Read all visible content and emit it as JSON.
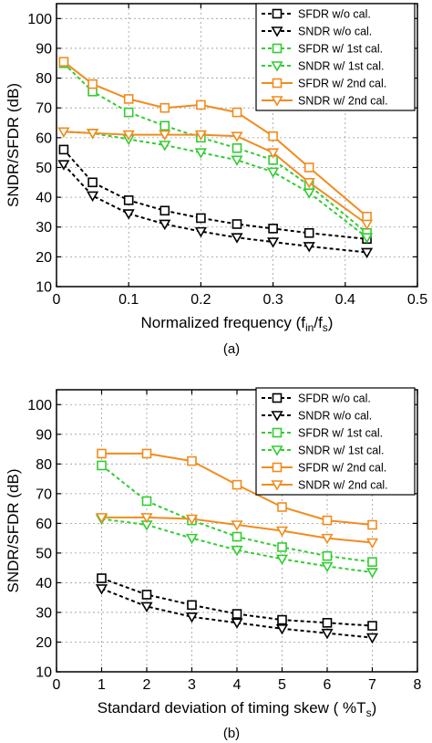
{
  "chart_data": [
    {
      "type": "line",
      "caption": "(a)",
      "xlabel_main": "Normalized frequency (f",
      "xlabel_sub1": "in",
      "xlabel_mid": "/f",
      "xlabel_sub2": "s",
      "xlabel_end": ")",
      "ylabel": "SNDR/SFDR (dB)",
      "xlim": [
        0,
        0.5
      ],
      "ylim": [
        10,
        105
      ],
      "xticks": [
        "0",
        "0.1",
        "0.2",
        "0.3",
        "0.4",
        "0.5"
      ],
      "xtick_values": [
        0,
        0.1,
        0.2,
        0.3,
        0.4,
        0.5
      ],
      "yticks": [
        "10",
        "20",
        "30",
        "40",
        "50",
        "60",
        "70",
        "80",
        "90",
        "100"
      ],
      "ytick_values": [
        10,
        20,
        30,
        40,
        50,
        60,
        70,
        80,
        90,
        100
      ],
      "grid": true,
      "legend_position": "top-right",
      "x": [
        0.01,
        0.05,
        0.1,
        0.15,
        0.2,
        0.25,
        0.3,
        0.35,
        0.43
      ],
      "series": [
        {
          "name": "SFDR w/o cal.",
          "color": "#000000",
          "marker": "square",
          "style": "dashed",
          "values": [
            56,
            45,
            39,
            35.5,
            33,
            31,
            29.5,
            28,
            26
          ]
        },
        {
          "name": "SNDR w/o cal.",
          "color": "#000000",
          "marker": "triangle-down",
          "style": "dashed",
          "values": [
            51,
            40.5,
            34.5,
            31,
            28.5,
            26.5,
            25,
            23.5,
            21.5
          ]
        },
        {
          "name": "SFDR w/ 1st cal.",
          "color": "#33cc33",
          "marker": "square",
          "style": "dashed",
          "values": [
            85,
            75.5,
            68.5,
            64,
            60,
            56.5,
            52.5,
            44,
            28
          ]
        },
        {
          "name": "SNDR w/ 1st cal.",
          "color": "#33cc33",
          "marker": "triangle-down",
          "style": "dashed",
          "values": [
            62,
            61.5,
            59.5,
            57.5,
            55,
            52.5,
            48.5,
            41.5,
            26.5
          ]
        },
        {
          "name": "SFDR w/ 2nd cal.",
          "color": "#f08c1e",
          "marker": "square",
          "style": "solid",
          "values": [
            85.5,
            78,
            73,
            70,
            71,
            68.5,
            60.5,
            50,
            33.5
          ]
        },
        {
          "name": "SNDR w/ 2nd cal.",
          "color": "#f08c1e",
          "marker": "triangle-down",
          "style": "solid",
          "values": [
            62,
            61.5,
            61,
            61,
            61,
            60.5,
            55,
            45,
            31
          ]
        }
      ]
    },
    {
      "type": "line",
      "caption": "(b)",
      "xlabel_main": "Standard deviation of timing skew ( %T",
      "xlabel_sub1": "s",
      "xlabel_mid": "",
      "xlabel_sub2": "",
      "xlabel_end": ")",
      "ylabel": "SNDR/SFDR (dB)",
      "xlim": [
        0,
        8
      ],
      "ylim": [
        10,
        105
      ],
      "xticks": [
        "0",
        "1",
        "2",
        "3",
        "4",
        "5",
        "6",
        "7",
        "8"
      ],
      "xtick_values": [
        0,
        1,
        2,
        3,
        4,
        5,
        6,
        7,
        8
      ],
      "yticks": [
        "10",
        "20",
        "30",
        "40",
        "50",
        "60",
        "70",
        "80",
        "90",
        "100"
      ],
      "ytick_values": [
        10,
        20,
        30,
        40,
        50,
        60,
        70,
        80,
        90,
        100
      ],
      "grid": true,
      "legend_position": "top-right",
      "x": [
        1,
        2,
        3,
        4,
        5,
        6,
        7
      ],
      "series": [
        {
          "name": "SFDR w/o cal.",
          "color": "#000000",
          "marker": "square",
          "style": "dashed",
          "values": [
            41.5,
            36,
            32.5,
            29.5,
            27.5,
            26.5,
            25.5
          ]
        },
        {
          "name": "SNDR w/o cal.",
          "color": "#000000",
          "marker": "triangle-down",
          "style": "dashed",
          "values": [
            38,
            32,
            28.5,
            26.5,
            24.5,
            23,
            21.5
          ]
        },
        {
          "name": "SFDR w/ 1st cal.",
          "color": "#33cc33",
          "marker": "square",
          "style": "dashed",
          "values": [
            79.5,
            67.5,
            61,
            55.5,
            52,
            49,
            47
          ]
        },
        {
          "name": "SNDR w/ 1st cal.",
          "color": "#33cc33",
          "marker": "triangle-down",
          "style": "dashed",
          "values": [
            61.5,
            59.5,
            55,
            51,
            48,
            45.5,
            43.5
          ]
        },
        {
          "name": "SFDR w/ 2nd cal.",
          "color": "#f08c1e",
          "marker": "square",
          "style": "solid",
          "values": [
            83.5,
            83.5,
            81,
            73,
            65.5,
            61,
            59.5
          ]
        },
        {
          "name": "SNDR w/ 2nd cal.",
          "color": "#f08c1e",
          "marker": "triangle-down",
          "style": "solid",
          "values": [
            62,
            62,
            61.5,
            59.5,
            57.5,
            55,
            53.5
          ]
        }
      ]
    }
  ]
}
